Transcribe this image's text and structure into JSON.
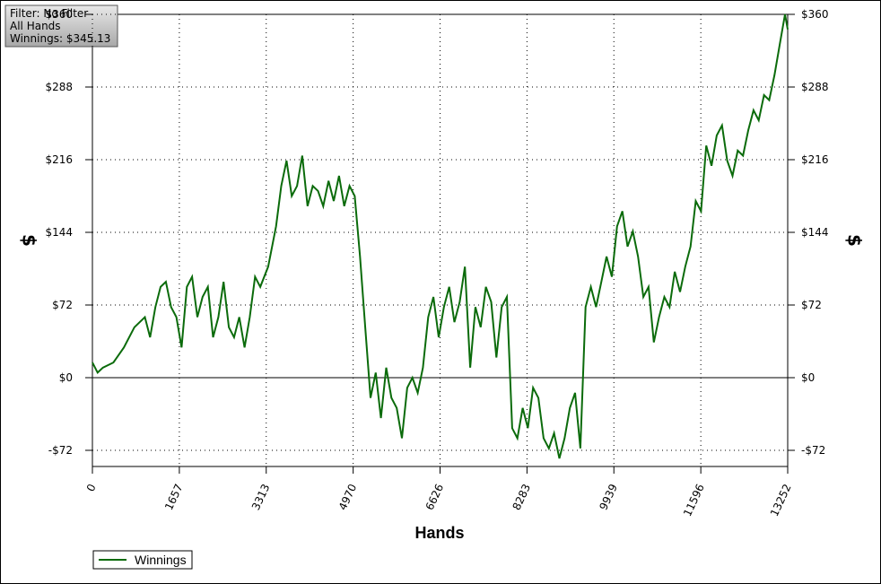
{
  "chart_data": {
    "type": "line",
    "filter_text": "Filter: No Filter",
    "hands_text": "All Hands",
    "winnings_text": "Winnings: $345.13",
    "x_label": "Hands",
    "y_label": "$",
    "y2_label": "$",
    "x": [
      0,
      100,
      200,
      400,
      600,
      800,
      1000,
      1100,
      1200,
      1300,
      1400,
      1500,
      1600,
      1700,
      1800,
      1900,
      2000,
      2100,
      2200,
      2300,
      2400,
      2500,
      2600,
      2700,
      2800,
      2900,
      3000,
      3100,
      3200,
      3350,
      3500,
      3600,
      3700,
      3800,
      3900,
      4000,
      4100,
      4200,
      4300,
      4400,
      4500,
      4600,
      4700,
      4800,
      4900,
      5000,
      5100,
      5200,
      5300,
      5400,
      5500,
      5600,
      5700,
      5800,
      5900,
      6000,
      6100,
      6200,
      6300,
      6400,
      6500,
      6600,
      6700,
      6800,
      6900,
      7000,
      7100,
      7200,
      7300,
      7400,
      7500,
      7600,
      7700,
      7800,
      7900,
      8000,
      8100,
      8200,
      8300,
      8400,
      8500,
      8600,
      8700,
      8800,
      8900,
      9000,
      9100,
      9200,
      9300,
      9400,
      9500,
      9600,
      9700,
      9800,
      9900,
      10000,
      10100,
      10200,
      10300,
      10400,
      10500,
      10600,
      10700,
      10800,
      10900,
      11000,
      11100,
      11200,
      11300,
      11400,
      11500,
      11600,
      11700,
      11800,
      11900,
      12000,
      12100,
      12200,
      12300,
      12400,
      12500,
      12600,
      12700,
      12800,
      12900,
      13000,
      13100,
      13200,
      13252
    ],
    "series": [
      {
        "name": "Winnings",
        "color": "#0b6b0b",
        "values": [
          15,
          5,
          10,
          15,
          30,
          50,
          60,
          40,
          70,
          90,
          95,
          70,
          60,
          30,
          90,
          100,
          60,
          80,
          90,
          40,
          60,
          95,
          50,
          40,
          60,
          30,
          60,
          100,
          90,
          110,
          150,
          190,
          215,
          180,
          190,
          220,
          170,
          190,
          185,
          170,
          195,
          175,
          200,
          170,
          190,
          180,
          120,
          50,
          -20,
          5,
          -40,
          10,
          -20,
          -30,
          -60,
          -10,
          0,
          -15,
          10,
          60,
          80,
          40,
          70,
          90,
          55,
          75,
          110,
          10,
          70,
          50,
          90,
          75,
          20,
          70,
          80,
          -50,
          -60,
          -30,
          -50,
          -10,
          -20,
          -60,
          -70,
          -55,
          -80,
          -60,
          -30,
          -15,
          -70,
          70,
          90,
          70,
          95,
          120,
          100,
          150,
          165,
          130,
          145,
          120,
          80,
          90,
          35,
          60,
          80,
          70,
          105,
          85,
          110,
          130,
          175,
          165,
          230,
          210,
          240,
          250,
          215,
          200,
          225,
          220,
          245,
          265,
          255,
          280,
          275,
          300,
          330,
          360,
          345.13
        ]
      }
    ],
    "xlim": [
      0,
      13252
    ],
    "xticks": [
      0,
      1657,
      3313,
      4970,
      6626,
      8283,
      9939,
      11596,
      13252
    ],
    "ylim": [
      -88,
      360
    ],
    "yticks": [
      {
        "value": -72,
        "label": "-$72"
      },
      {
        "value": 0,
        "label": "$0"
      },
      {
        "value": 72,
        "label": "$72"
      },
      {
        "value": 144,
        "label": "$144"
      },
      {
        "value": 216,
        "label": "$216"
      },
      {
        "value": 288,
        "label": "$288"
      },
      {
        "value": 360,
        "label": "$360"
      }
    ],
    "grid": true,
    "legend": "bottom-left"
  }
}
